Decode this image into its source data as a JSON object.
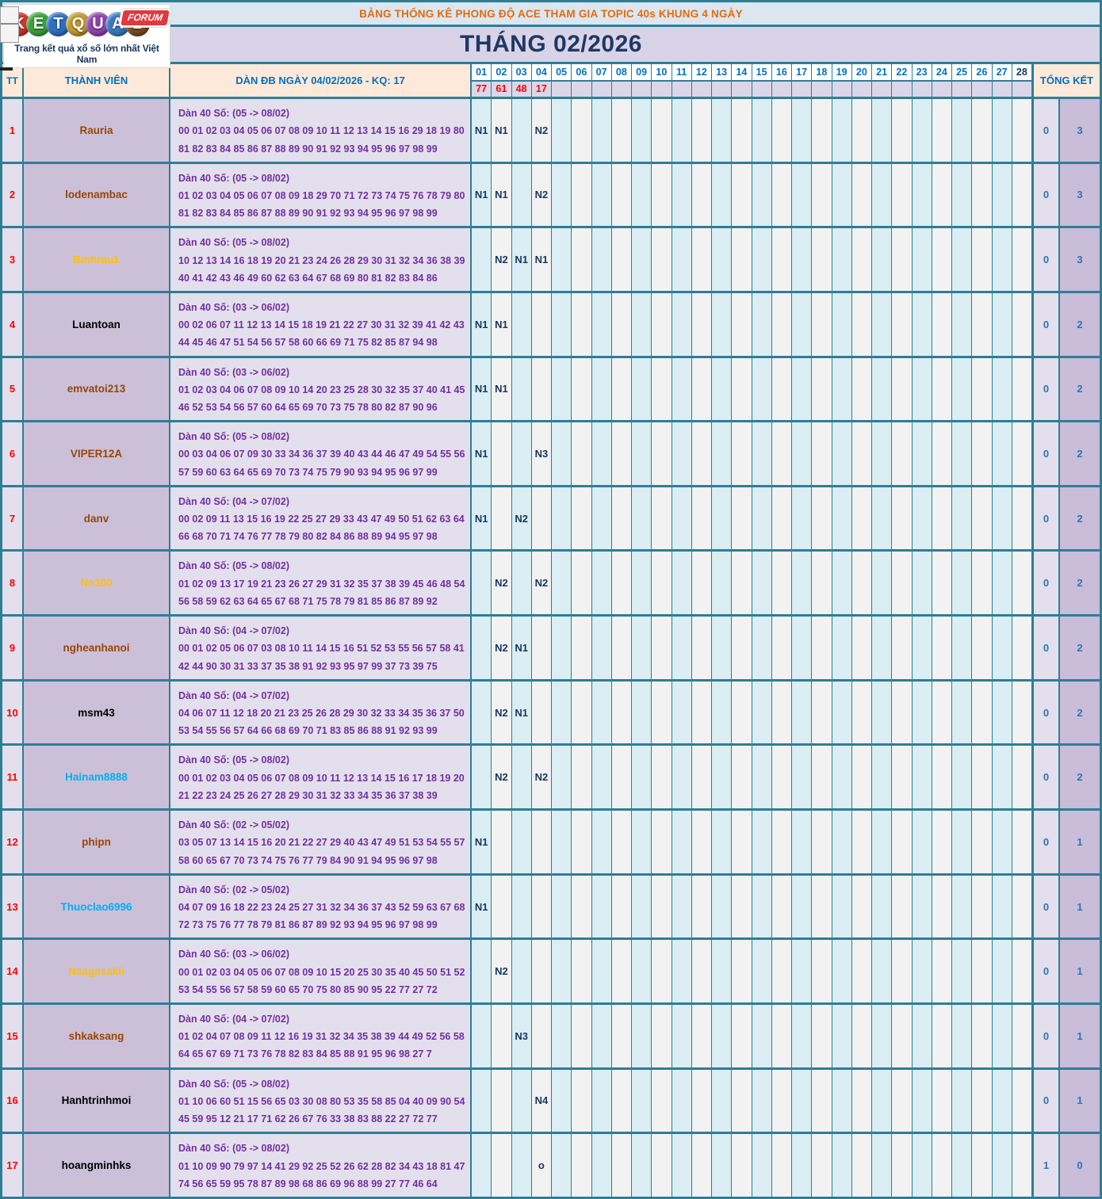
{
  "logo": {
    "brand_name": "KETQUA2",
    "letters": [
      {
        "ch": "K",
        "color": "#D5342B"
      },
      {
        "ch": "E",
        "color": "#3AA23B"
      },
      {
        "ch": "T",
        "color": "#2F6FBF"
      },
      {
        "ch": "Q",
        "color": "#C09A2E"
      },
      {
        "ch": "U",
        "color": "#8E44AD"
      },
      {
        "ch": "A",
        "color": "#3C78C0"
      },
      {
        "ch": "2",
        "color": "#7A4A21"
      }
    ],
    "forum_badge": "FORUM",
    "tagline": "Trang kết quả xổ số lớn nhất Việt Nam"
  },
  "banner": {
    "title": "BẢNG THỐNG KÊ PHONG ĐỘ ACE THAM GIA TOPIC 40s KHUNG 4 NGÀY"
  },
  "month_header": "THÁNG 02/2026",
  "columns": {
    "tt": "TT",
    "member": "THÀNH VIÊN",
    "dan": "DÀN ĐB NGÀY 04/02/2026 - KQ: 17",
    "total": "TỔNG KẾT"
  },
  "days": [
    "01",
    "02",
    "03",
    "04",
    "05",
    "06",
    "07",
    "08",
    "09",
    "10",
    "11",
    "12",
    "13",
    "14",
    "15",
    "16",
    "17",
    "18",
    "19",
    "20",
    "21",
    "22",
    "23",
    "24",
    "25",
    "26",
    "27",
    "28"
  ],
  "day_results": {
    "01": "77",
    "02": "61",
    "03": "48",
    "04": "17"
  },
  "colors": {
    "border_teal": "#2E7E96",
    "banner_bg": "#DCE6F1",
    "banner_text": "#E36C0A",
    "month_bg": "#D9D3E7",
    "month_text": "#1F3864",
    "header_peach": "#FDE9D9",
    "header_blue": "#0070C0",
    "result_red": "#FF0000",
    "dan_purple": "#7030A0",
    "mark_navy": "#17375E",
    "total_blue": "#2E75B6",
    "member_bg": "#CCC0D9",
    "day_cyan": "#DAEEF3",
    "day_white": "#F2F2F2"
  },
  "rows": [
    {
      "tt": "1",
      "member": "Rauria",
      "member_color": "#974706",
      "dan_title": "Dàn 40 Số: (05 -> 08/02)",
      "dan_line1": "00 01 02 03 04 05 06 07 08 09 10 11 12 13 14 15 16 29 18 19 80",
      "dan_line2": "81 82 83 84 85 86 87 88 89 90 91 92 93 94 95 96 97 98 99",
      "marks": {
        "01": "N1",
        "02": "N1",
        "04": "N2"
      },
      "total_left": "0",
      "total_right": "3"
    },
    {
      "tt": "2",
      "member": "lodenambac",
      "member_color": "#974706",
      "dan_title": "Dàn 40 Số: (05 -> 08/02)",
      "dan_line1": "01 02 03 04 05 06 07 08 09 18 29 70 71 72 73 74 75 76 78 79 80",
      "dan_line2": "81 82 83 84 85 86 87 88 89 90 91 92 93 94 95 96 97 98 99",
      "marks": {
        "01": "N1",
        "02": "N1",
        "04": "N2"
      },
      "total_left": "0",
      "total_right": "3"
    },
    {
      "tt": "3",
      "member": "Binhrau1",
      "member_color": "#FFC000",
      "dan_title": "Dàn 40 Số: (05 -> 08/02)",
      "dan_line1": "10 12 13 14 16 18 19 20 21 23 24 26 28 29 30 31 32 34 36 38 39",
      "dan_line2": "40 41 42 43 46 49 60 62 63 64 67 68 69 80 81 82 83 84 86",
      "marks": {
        "02": "N2",
        "03": "N1",
        "04": "N1"
      },
      "total_left": "0",
      "total_right": "3"
    },
    {
      "tt": "4",
      "member": "Luantoan",
      "member_color": "#000000",
      "dan_title": "Dàn 40 Số: (03 -> 06/02)",
      "dan_line1": "00 02 06 07 11 12 13 14 15 18 19 21 22 27 30 31 32 39 41 42 43",
      "dan_line2": "44 45 46 47 51 54 56 57 58 60 66 69 71 75 82 85 87 94 98",
      "marks": {
        "01": "N1",
        "02": "N1"
      },
      "total_left": "0",
      "total_right": "2"
    },
    {
      "tt": "5",
      "member": "emvatoi213",
      "member_color": "#974706",
      "dan_title": "Dàn 40 Số: (03 -> 06/02)",
      "dan_line1": "01 02 03 04 06 07 08 09 10 14 20 23 25 28 30 32 35 37 40 41 45",
      "dan_line2": "46 52 53 54 56 57 60 64 65 69 70 73 75 78 80 82 87 90 96",
      "marks": {
        "01": "N1",
        "02": "N1"
      },
      "total_left": "0",
      "total_right": "2"
    },
    {
      "tt": "6",
      "member": "VIPER12A",
      "member_color": "#974706",
      "dan_title": "Dàn 40 Số: (05 -> 08/02)",
      "dan_line1": "00 03 04 06 07 09 30 33 34 36 37 39 40 43 44 46 47 49 54 55 56",
      "dan_line2": "57 59 60 63 64 65 69 70 73 74 75 79 90 93 94 95 96 97 99",
      "marks": {
        "01": "N1",
        "04": "N3"
      },
      "total_left": "0",
      "total_right": "2"
    },
    {
      "tt": "7",
      "member": "danv",
      "member_color": "#974706",
      "dan_title": "Dàn 40 Số: (04 -> 07/02)",
      "dan_line1": "00 02 09 11 13 15 16 19 22 25 27 29 33 43 47 49 50 51 62 63 64",
      "dan_line2": "66 68 70 71 74 76 77 78 79 80 82 84 86 88 89 94 95 97 98",
      "marks": {
        "01": "N1",
        "03": "N2"
      },
      "total_left": "0",
      "total_right": "2"
    },
    {
      "tt": "8",
      "member": "Nn300",
      "member_color": "#FFC000",
      "dan_title": "Dàn 40 Số: (05 -> 08/02)",
      "dan_line1": "01 02 09 13 17 19 21 23 26 27 29 31 32 35 37 38 39 45 46 48 54",
      "dan_line2": "56 58 59 62 63 64 65 67 68 71 75 78 79 81 85 86 87 89 92",
      "marks": {
        "02": "N2",
        "04": "N2"
      },
      "total_left": "0",
      "total_right": "2"
    },
    {
      "tt": "9",
      "member": "ngheanhanoi",
      "member_color": "#974706",
      "dan_title": "Dàn 40 Số: (04 -> 07/02)",
      "dan_line1": "00 01 02 05 06 07 03 08 10 11 14 15 16 51 52 53 55 56 57 58 41",
      "dan_line2": "42 44 90 30 31 33 37 35 38 91 92 93 95 97 99 37 73 39 75",
      "marks": {
        "02": "N2",
        "03": "N1"
      },
      "total_left": "0",
      "total_right": "2"
    },
    {
      "tt": "10",
      "member": "msm43",
      "member_color": "#000000",
      "dan_title": "Dàn 40 Số: (04 -> 07/02)",
      "dan_line1": "04 06 07 11 12 18 20 21 23 25 26 28 29 30 32 33 34 35 36 37 50",
      "dan_line2": "53 54 55 56 57 64 66 68 69 70 71 83 85 86 88 91 92 93 99",
      "marks": {
        "02": "N2",
        "03": "N1"
      },
      "total_left": "0",
      "total_right": "2"
    },
    {
      "tt": "11",
      "member": "Hainam8888",
      "member_color": "#00B0F0",
      "dan_title": "Dàn 40 Số: (05 -> 08/02)",
      "dan_line1": "00 01 02 03 04 05 06 07 08 09 10 11 12 13 14 15 16 17 18 19 20",
      "dan_line2": "21 22 23 24 25 26 27 28 29 30 31 32 33 34 35 36 37 38 39",
      "marks": {
        "02": "N2",
        "04": "N2"
      },
      "total_left": "0",
      "total_right": "2"
    },
    {
      "tt": "12",
      "member": "phipn",
      "member_color": "#974706",
      "dan_title": "Dàn 40 Số: (02 -> 05/02)",
      "dan_line1": "03 05 07 13 14 15 16 20 21 22 27 29 40 43 47 49 51 53 54 55 57",
      "dan_line2": "58 60 65 67 70 73 74 75 76 77 79 84 90 91 94 95 96 97 98",
      "marks": {
        "01": "N1"
      },
      "total_left": "0",
      "total_right": "1"
    },
    {
      "tt": "13",
      "member": "Thuoclao6996",
      "member_color": "#00B0F0",
      "dan_title": "Dàn 40 Số: (02 -> 05/02)",
      "dan_line1": "04 07 09 16 18 22 23 24 25 27 31 32 34 36 37 43 52 59 63 67 68",
      "dan_line2": "72 73 75 76 77 78 79 81 86 87 89 92 93 94 95 96 97 98 99",
      "marks": {
        "01": "N1"
      },
      "total_left": "0",
      "total_right": "1"
    },
    {
      "tt": "14",
      "member": "Naagasakii",
      "member_color": "#FFC000",
      "dan_title": "Dàn 40 Số: (03 -> 06/02)",
      "dan_line1": "00 01 02 03 04 05 06 07 08 09 10 15 20 25 30 35 40 45 50 51 52",
      "dan_line2": "53 54 55 56 57 58 59 60 65 70 75 80 85 90 95 22 77 27 72",
      "marks": {
        "02": "N2"
      },
      "total_left": "0",
      "total_right": "1"
    },
    {
      "tt": "15",
      "member": "shkaksang",
      "member_color": "#974706",
      "dan_title": "Dàn 40 Số: (04 -> 07/02)",
      "dan_line1": "01 02 04 07 08 09 11 12 16 19 31 32 34 35 38 39 44 49 52 56 58",
      "dan_line2": "64 65 67 69 71 73 76 78 82 83 84 85 88 91 95 96 98 27 7",
      "marks": {
        "03": "N3"
      },
      "total_left": "0",
      "total_right": "1"
    },
    {
      "tt": "16",
      "member": "Hanhtrinhmoi",
      "member_color": "#000000",
      "dan_title": "Dàn 40 Số: (05 -> 08/02)",
      "dan_line1": "01 10 06 60 51 15 56 65 03 30 08 80 53 35 58 85 04 40 09 90 54",
      "dan_line2": "45 59 95 12 21 17 71 62 26 67 76 33 38 83 88 22 27 72 77",
      "marks": {
        "04": "N4"
      },
      "total_left": "0",
      "total_right": "1"
    },
    {
      "tt": "17",
      "member": "hoangminhks",
      "member_color": "#000000",
      "dan_title": "Dàn 40 Số: (05 -> 08/02)",
      "dan_line1": "01 10 09 90 79 97 14 41 29 92 25 52 26 62 28 82 34 43 18 81 47",
      "dan_line2": "74 56 65 59 95 78 87 89 98 68 86 69 96 88 99 27 77 46 64",
      "marks": {
        "04": "o"
      },
      "total_left": "1",
      "total_right": "0"
    }
  ]
}
